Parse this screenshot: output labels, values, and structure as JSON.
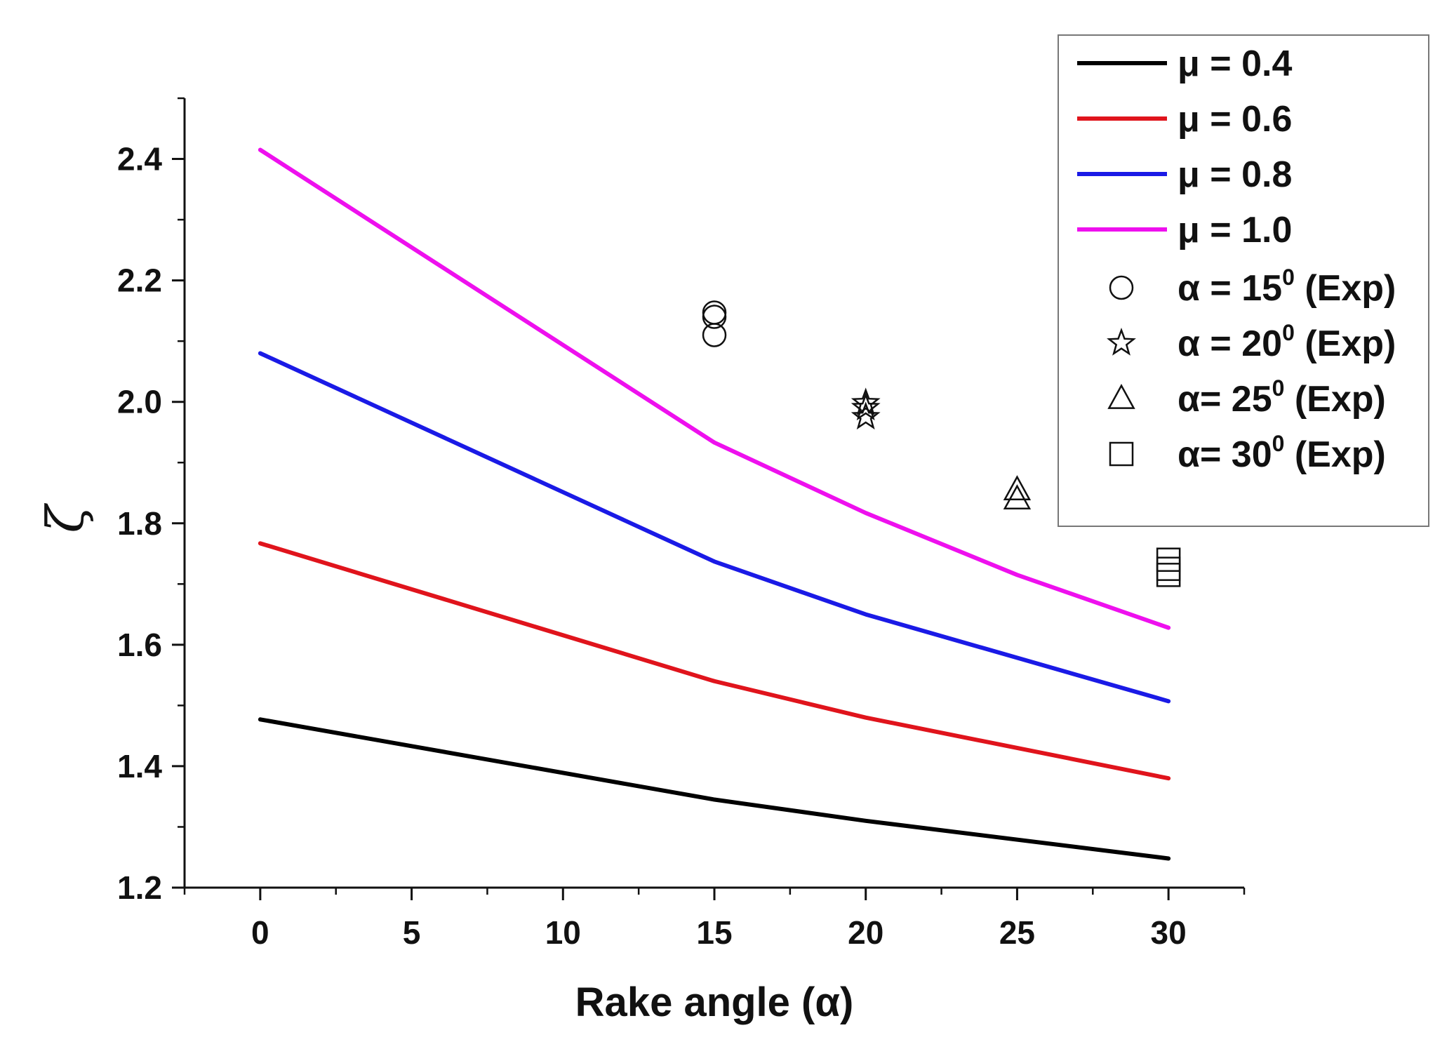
{
  "chart_data": {
    "type": "line",
    "title": "",
    "xlabel": "Rake angle (α)",
    "ylabel": "ζ",
    "xlim": [
      -2.5,
      32.5
    ],
    "ylim": [
      1.2,
      2.5
    ],
    "x_ticks": [
      0,
      5,
      10,
      15,
      20,
      25,
      30
    ],
    "x_tick_labels": [
      "0",
      "5",
      "10",
      "15",
      "20",
      "25",
      "30"
    ],
    "y_ticks": [
      1.2,
      1.4,
      1.6,
      1.8,
      2.0,
      2.2,
      2.4
    ],
    "y_tick_labels": [
      "1.2",
      "1.4",
      "1.6",
      "1.8",
      "2.0",
      "2.2",
      "2.4"
    ],
    "grid": false,
    "legend_position": "top-right",
    "series": [
      {
        "name": "μ = 0.4",
        "color": "#000000",
        "x": [
          0,
          15,
          20,
          30
        ],
        "values": [
          1.477,
          1.345,
          1.31,
          1.248
        ]
      },
      {
        "name": "μ = 0.6",
        "color": "#e0141c",
        "x": [
          0,
          15,
          20,
          30
        ],
        "values": [
          1.767,
          1.54,
          1.48,
          1.38
        ]
      },
      {
        "name": "μ = 0.8",
        "color": "#1a1ae6",
        "x": [
          0,
          15,
          20,
          30
        ],
        "values": [
          2.08,
          1.737,
          1.65,
          1.507
        ]
      },
      {
        "name": "μ = 1.0",
        "color": "#ee10ee",
        "x": [
          0,
          15,
          20,
          25,
          30
        ],
        "values": [
          2.415,
          1.933,
          1.817,
          1.715,
          1.628
        ]
      }
    ],
    "experimental": [
      {
        "label_prefix": "α = 15",
        "label_sup": "0",
        "label_suffix": " (Exp)",
        "marker": "circle",
        "x": 15,
        "values": [
          2.147,
          2.14,
          2.11
        ]
      },
      {
        "label_prefix": "α = 20",
        "label_sup": "0",
        "label_suffix": " (Exp)",
        "marker": "star",
        "x": 20,
        "values": [
          1.998,
          1.99,
          1.975
        ]
      },
      {
        "label_prefix": "α= 25",
        "label_sup": "0",
        "label_suffix": " (Exp)",
        "marker": "triangle",
        "x": 25,
        "values": [
          1.855,
          1.84
        ]
      },
      {
        "label_prefix": "α= 30",
        "label_sup": "0",
        "label_suffix": " (Exp)",
        "marker": "square",
        "x": 30,
        "values": [
          1.74,
          1.725,
          1.715
        ]
      }
    ]
  }
}
